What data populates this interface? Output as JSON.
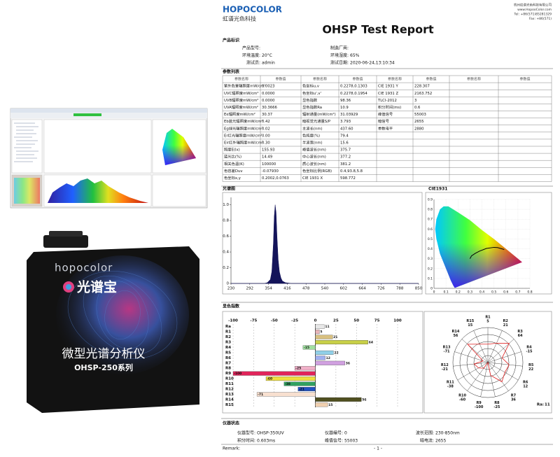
{
  "left_panel": {
    "product_photo": {
      "brand": "hopocolor",
      "name": "光谱宝",
      "description": "微型光谱分析仪",
      "series": "OHSP-250系列"
    }
  },
  "header": {
    "logo": "HOPOCOLOR",
    "company": "虹谱光色科技",
    "address_lines": [
      "杭州虹谱光色科技有限公司",
      "www.HopooColor.com",
      "Tel: +86(571)85281329",
      "Fax: +86(571)"
    ],
    "title": "OHSP Test Report"
  },
  "product_info": {
    "section": "产品标识",
    "fields": [
      {
        "label": "产品型号:"
      },
      {
        "label": "制造厂商:"
      },
      {
        "label": "环境温度:",
        "value": "20°C"
      },
      {
        "label": "环境湿度:",
        "value": "65%"
      },
      {
        "label": "测试员:",
        "value": "admin"
      },
      {
        "label": "测试日期:",
        "value": "2020-06-24,13:10:34"
      }
    ]
  },
  "params": {
    "section": "参数列表",
    "header": [
      "参数名称",
      "参数值",
      "参数名称",
      "参数值",
      "参数名称",
      "参数值",
      "参数名称",
      "参数值"
    ],
    "rows": [
      [
        "紫外危害辐照度mW/cm²",
        "0.0023",
        "色坐标u,v",
        "0.2278,0.1303",
        "CIE 1931 Y",
        "228.307"
      ],
      [
        "UVC辐照度mW/cm²",
        "0.0000",
        "色坐标u',v'",
        "0.2278,0.1954",
        "CIE 1931 Z",
        "2163.752"
      ],
      [
        "UVB辐照度mW/cm²",
        "0.0000",
        "显色指数",
        "98.36",
        "TLCI-2012",
        "3"
      ],
      [
        "UVA辐照度mW/cm²",
        "30.3666",
        "显色指数Ra",
        "10.9",
        "积分时间(ms)",
        "0.6"
      ],
      [
        "Ee辐照度mW/cm²",
        "30.37",
        "辐射通量(mW/cm²)",
        "31.03929",
        "峰值信号",
        "55003"
      ],
      [
        "Eb蓝光辐照度mW/cm²",
        "0.42",
        "暗视觉光通量S/P",
        "3.793",
        "暗信号",
        "2655"
      ],
      [
        "Eg绿光辐照度mW/cm²",
        "0.02",
        "主波长(nm)",
        "437.60",
        "参数电平",
        "2880"
      ],
      [
        "Er红光辐照度mW/cm²",
        "0.00",
        "色纯度(%)",
        "79.4"
      ],
      [
        "Eir红外辐照度mW/cm²",
        "0.30",
        "半波宽(nm)",
        "15.6"
      ],
      [
        "照度E(lx)",
        "155.93",
        "峰值波长(nm)",
        "375.7"
      ],
      [
        "蓝光比(%)",
        "14.49",
        "中心波长(nm)",
        "377.2"
      ],
      [
        "相关色温(K)",
        "100000",
        "质心波长(nm)",
        "381.2"
      ],
      [
        "色容差Duv",
        "-0.07930",
        "色坐标比例(RGB)",
        "0.4,93.8,5.8"
      ],
      [
        "色坐标x,y",
        "0.2002,0.0763",
        "CIE 1931 X",
        "598.772"
      ]
    ]
  },
  "sections": {
    "spectrum": "光谱图",
    "cri": "显色指数",
    "status": "仪器状态"
  },
  "chart_data": [
    {
      "type": "area",
      "x": [
        230,
        340,
        350,
        360,
        365,
        370,
        373,
        376,
        379,
        382,
        386,
        390,
        395,
        400,
        410,
        430,
        500,
        850
      ],
      "values": [
        0,
        0,
        0.01,
        0.05,
        0.15,
        0.5,
        0.85,
        1,
        0.9,
        0.6,
        0.3,
        0.15,
        0.07,
        0.03,
        0.01,
        0,
        0,
        0
      ],
      "color": "#14145a",
      "xlim": [
        230,
        850
      ],
      "ylim": [
        0,
        1.05
      ],
      "xticks": [
        230,
        292,
        354,
        416,
        478,
        540,
        602,
        664,
        726,
        788,
        850
      ],
      "yticks": [
        0,
        0.2,
        0.4,
        0.6,
        0.8,
        {
          "value": 1,
          "label": "1.0"
        }
      ]
    },
    {
      "type": "cie",
      "title": "CIE1931",
      "xlim": [
        0,
        0.8
      ],
      "ylim": [
        0,
        0.9
      ],
      "xticks": [
        0,
        0.1,
        0.2,
        0.3,
        0.4,
        0.5,
        0.6,
        0.7,
        0.8
      ],
      "yticks": [
        0,
        0.1,
        0.2,
        0.3,
        0.4,
        0.5,
        0.6,
        0.7,
        0.8,
        0.9
      ],
      "locus": {
        "x": [
          0.175,
          0.17,
          0.16,
          0.14,
          0.1,
          0.05,
          0.02,
          0.01,
          0.02,
          0.05,
          0.08,
          0.12,
          0.2,
          0.3,
          0.4,
          0.5,
          0.6,
          0.7,
          0.735
        ],
        "y": [
          0.005,
          0.01,
          0.03,
          0.08,
          0.2,
          0.35,
          0.5,
          0.6,
          0.7,
          0.8,
          0.83,
          0.83,
          0.77,
          0.69,
          0.59,
          0.5,
          0.4,
          0.3,
          0.265
        ]
      },
      "planck": {
        "x": [
          0.3,
          0.313,
          0.345,
          0.38,
          0.437,
          0.5,
          0.53,
          0.586
        ],
        "y": [
          0.3,
          0.329,
          0.355,
          0.377,
          0.404,
          0.415,
          0.413,
          0.393
        ],
        "color": "#000000"
      }
    },
    {
      "type": "hbar",
      "categories": [
        "Ra",
        "R1",
        "R2",
        "R3",
        "R4",
        "R5",
        "R6",
        "R7",
        "R8",
        "R9",
        "R10",
        "R11",
        "R12",
        "R13",
        "R14",
        "R15"
      ],
      "values": [
        11,
        5,
        21,
        64,
        -15,
        22,
        12,
        36,
        -25,
        -100,
        -60,
        -38,
        -21,
        -71,
        56,
        15
      ],
      "colors": [
        "#e8e8e8",
        "#e8b4b8",
        "#d8c080",
        "#c8d048",
        "#a0e0a0",
        "#90d0e8",
        "#a0b0f0",
        "#d0a0e0",
        "#f0b0c8",
        "#e0245a",
        "#f0e040",
        "#30a060",
        "#2050c0",
        "#f8e0d0",
        "#505020",
        "#f0d0b0"
      ],
      "xlim": [
        -100,
        100
      ],
      "xticks": [
        -100,
        -75,
        -50,
        -25,
        0,
        25,
        50,
        75,
        100
      ]
    },
    {
      "type": "radar",
      "categories": [
        "R1",
        "R2",
        "R3",
        "R4",
        "R5",
        "R6",
        "R7",
        "R8",
        "R9",
        "R10",
        "R11",
        "R12",
        "R13",
        "R14",
        "R15"
      ],
      "values": [
        5,
        21,
        64,
        -15,
        22,
        12,
        36,
        -25,
        -100,
        -60,
        -38,
        -21,
        -71,
        56,
        15
      ],
      "rlim": [
        -100,
        100
      ],
      "color": "#e02020",
      "summary_label": "Ra:",
      "summary_value": 11
    }
  ],
  "instrument_status": {
    "fields": [
      {
        "label": "仪器型号:",
        "value": "OHSP-350UV"
      },
      {
        "label": "仪器编号:",
        "value": "0"
      },
      {
        "label": "波长范围:",
        "value": "230-850nm"
      },
      {
        "label": "积分时间:",
        "value": "0.603ms"
      },
      {
        "label": "峰值信号:",
        "value": "55003"
      },
      {
        "label": "暗电流:",
        "value": "2655"
      }
    ]
  },
  "footer": {
    "remark": "Remark:",
    "page": "- 1 -"
  }
}
